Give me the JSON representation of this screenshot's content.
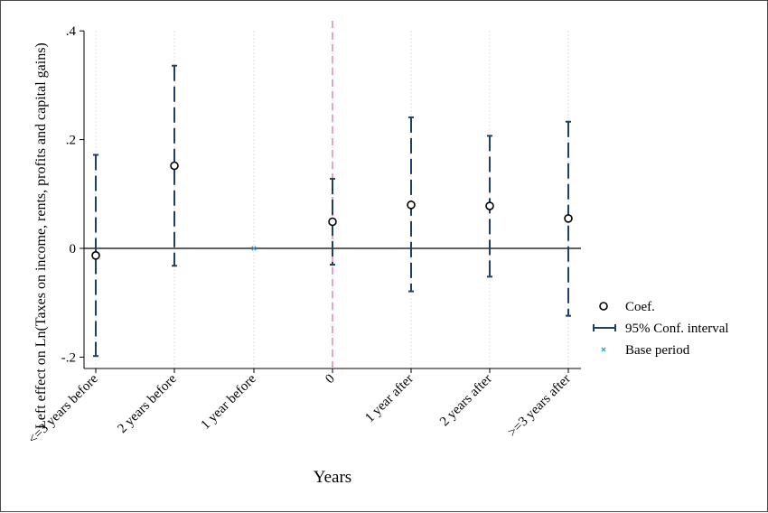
{
  "chart_data": {
    "type": "scatter",
    "title": "",
    "xlabel": "Years",
    "ylabel": "Left effect on Ln(Taxes on income, rents, profits and capital gains)",
    "categories": [
      "<=3 years before",
      "2 years before",
      "1 year before",
      "0",
      "1 year after",
      "2 years after",
      ">=3 years after"
    ],
    "y_ticks": [
      ".4",
      ".2",
      "0",
      "-.2"
    ],
    "ylim": [
      -0.22,
      0.4
    ],
    "reference_line_x": "0",
    "series": [
      {
        "name": "Coef.",
        "values": [
          -0.013,
          0.152,
          null,
          0.049,
          0.08,
          0.078,
          0.055
        ]
      },
      {
        "name": "95% Conf. interval",
        "lower": [
          -0.198,
          -0.032,
          null,
          -0.03,
          -0.079,
          -0.052,
          -0.124
        ],
        "upper": [
          0.172,
          0.336,
          null,
          0.128,
          0.241,
          0.207,
          0.233
        ]
      },
      {
        "name": "Base period",
        "values": [
          null,
          null,
          0.0,
          null,
          null,
          null,
          null
        ]
      }
    ],
    "legend": {
      "position": "right",
      "items": [
        "Coef.",
        "95% Conf. interval",
        "Base period"
      ]
    },
    "colors": {
      "coef_marker": "#000000",
      "ci": "#1f3f66",
      "base": "#3e9fd8",
      "zero_line": "#000000",
      "reference_line": "#d98ab5",
      "grid": "#d8d8d8"
    },
    "grid": true
  }
}
